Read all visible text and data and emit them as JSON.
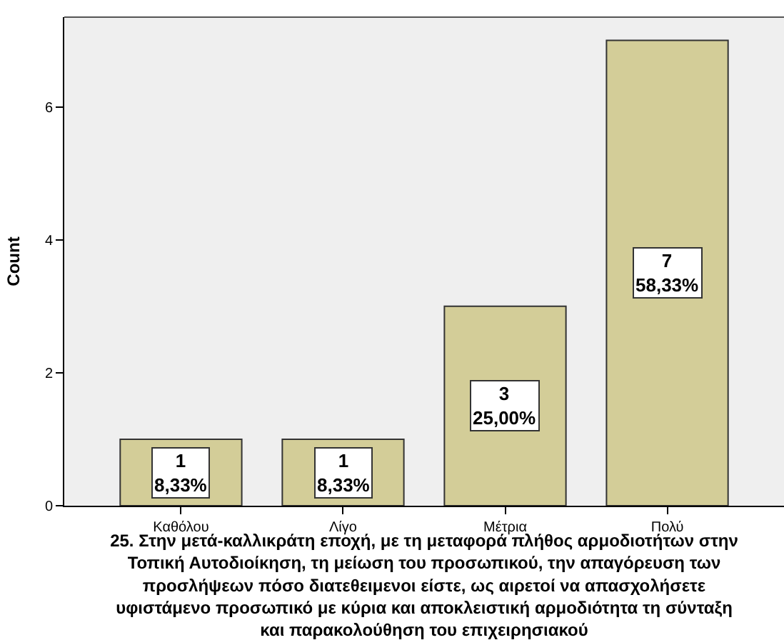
{
  "chart_data": {
    "type": "bar",
    "xlabel": "25. Στην μετά-καλλικράτη εποχή, με τη μεταφορά πλήθος αρμοδιοτήτων στην\nΤοπική Αυτοδιοίκηση, τη μείωση του προσωπικού, την απαγόρευση των\nπροσλήψεων πόσο διατεθειμενοι είστε, ως αιρετοί να απασχολήσετε\nυφιστάμενο προσωπικό με κύρια και αποκλειστική αρμοδιότητα τη σύνταξη\nκαι παρακολούθηση του επιχειρησιακού",
    "ylabel": "Count",
    "categories": [
      "Καθόλου",
      "Λίγο",
      "Μέτρια",
      "Πολύ"
    ],
    "values": [
      1,
      1,
      3,
      7
    ],
    "value_labels": [
      "1\n8,33%",
      "1\n8,33%",
      "3\n25,00%",
      "7\n58,33%"
    ],
    "color": "#d3cd98",
    "ylim": [
      0,
      7.35
    ],
    "yticks": [
      0,
      2,
      4,
      6
    ],
    "grid": false
  }
}
